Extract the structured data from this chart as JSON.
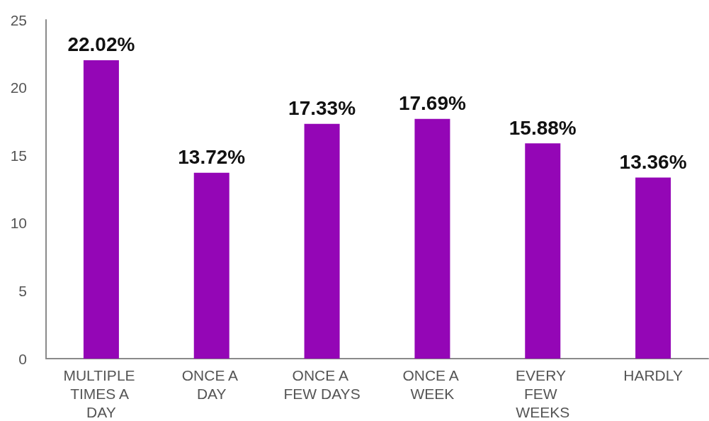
{
  "chart_data": {
    "type": "bar",
    "categories": [
      "MULTIPLE TIMES A DAY",
      "ONCE A DAY",
      "ONCE A FEW DAYS",
      "ONCE A WEEK",
      "EVERY FEW WEEKS",
      "HARDLY"
    ],
    "values": [
      22.02,
      13.72,
      17.33,
      17.69,
      15.88,
      13.36
    ],
    "value_labels": [
      "22.02%",
      "13.72%",
      "17.33%",
      "17.69%",
      "15.88%",
      "13.36%"
    ],
    "color": "#9406b6",
    "ylim": [
      0,
      25
    ],
    "yticks": [
      0,
      5,
      10,
      15,
      20,
      25
    ],
    "grid": false
  }
}
